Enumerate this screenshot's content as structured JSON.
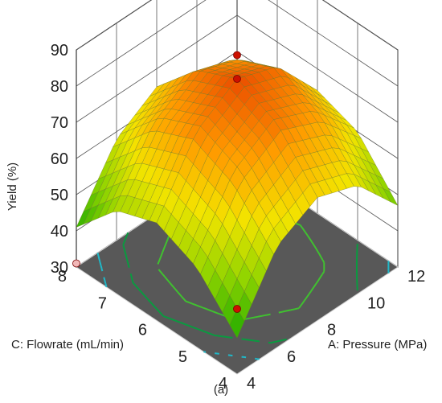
{
  "chart_data": {
    "type": "surface",
    "caption": "(a)",
    "xlabel": "A: Pressure (MPa)",
    "ylabel": "C: Flowrate (mL/min)",
    "zlabel": "Yield (%)",
    "x_ticks": [
      "4",
      "6",
      "8",
      "10",
      "12"
    ],
    "y_ticks": [
      "4",
      "5",
      "6",
      "7",
      "8"
    ],
    "z_ticks": [
      "30",
      "40",
      "50",
      "60",
      "70",
      "80",
      "90"
    ],
    "xlim": [
      4,
      12
    ],
    "ylim": [
      4,
      8
    ],
    "zlim": [
      30,
      90
    ],
    "surface": {
      "x": [
        4,
        6,
        8,
        10,
        12
      ],
      "y": [
        4,
        5,
        6,
        7,
        8
      ],
      "z": [
        [
          40,
          58,
          64,
          60,
          47
        ],
        [
          52,
          70,
          77,
          72,
          60
        ],
        [
          57,
          75,
          82,
          78,
          64
        ],
        [
          53,
          70,
          77,
          73,
          60
        ],
        [
          41,
          58,
          65,
          61,
          48
        ]
      ]
    },
    "points": [
      {
        "x": 8,
        "y": 6,
        "z": 82,
        "color": "#cc1100"
      },
      {
        "x": 12,
        "y": 8,
        "z": 59,
        "color": "#cc1100"
      },
      {
        "x": 4,
        "y": 4,
        "z": 48,
        "color": "#cc1100"
      },
      {
        "x": 4,
        "y": 8,
        "z": 31,
        "color": "#f2b8b8"
      }
    ],
    "contour_levels": [
      50,
      60,
      70,
      80
    ],
    "contour_colors": [
      "#20b8c8",
      "#0a9a40",
      "#40c030",
      "#e0d000"
    ],
    "colormap": [
      "#1aa800",
      "#8fd400",
      "#f3e400",
      "#ff9a00",
      "#e63c00"
    ],
    "floor_color": "#585858"
  }
}
